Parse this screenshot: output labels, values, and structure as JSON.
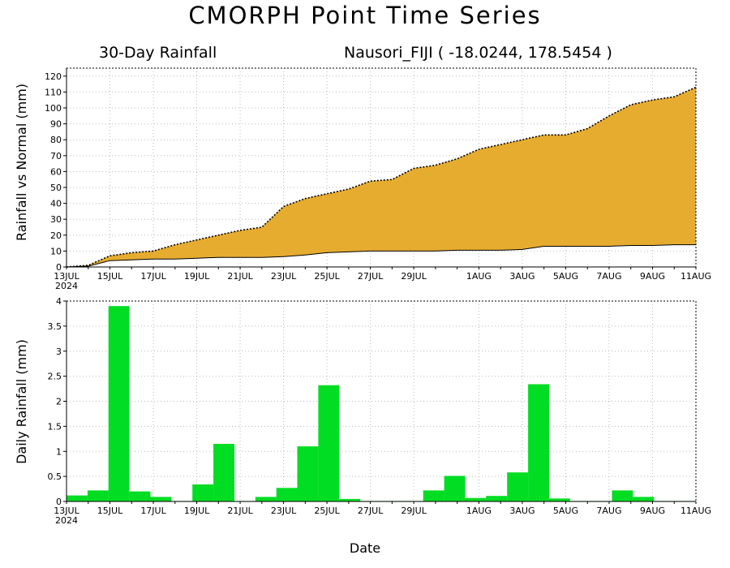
{
  "title": "CMORPH Point Time Series",
  "subtitle_left": "30-Day Rainfall",
  "subtitle_right": "Nausori_FIJI ( -18.0244, 178.5454 )",
  "xlabel": "Date",
  "colors": {
    "accumulated_fill": "#e6ac30",
    "daily_bar": "#00dd22",
    "frame": "#000000",
    "grid": "#bbbbbb"
  },
  "chart_data": [
    {
      "type": "area",
      "ylabel": "Rainfall vs Normal (mm)",
      "xlim": [
        0,
        29
      ],
      "ylim": [
        0,
        125
      ],
      "yticks": [
        0,
        10,
        20,
        30,
        40,
        50,
        60,
        70,
        80,
        90,
        100,
        110,
        120
      ],
      "xtick_positions": [
        0,
        2,
        4,
        6,
        8,
        10,
        12,
        14,
        16,
        19,
        21,
        23,
        25,
        27,
        29
      ],
      "xtick_labels": [
        "13JUL",
        "15JUL",
        "17JUL",
        "19JUL",
        "21JUL",
        "23JUL",
        "25JUL",
        "27JUL",
        "29JUL",
        "1AUG",
        "3AUG",
        "5AUG",
        "7AUG",
        "9AUG",
        "11AUG"
      ],
      "year_label": "2024",
      "grid": true,
      "x": [
        "13JUL",
        "14JUL",
        "15JUL",
        "16JUL",
        "17JUL",
        "18JUL",
        "19JUL",
        "20JUL",
        "21JUL",
        "22JUL",
        "23JUL",
        "24JUL",
        "25JUL",
        "26JUL",
        "27JUL",
        "28JUL",
        "29JUL",
        "30JUL",
        "31JUL",
        "1AUG",
        "2AUG",
        "3AUG",
        "4AUG",
        "5AUG",
        "6AUG",
        "7AUG",
        "8AUG",
        "9AUG",
        "10AUG",
        "11AUG"
      ],
      "series": [
        {
          "values": [
            0,
            1,
            7,
            9,
            10,
            14,
            17,
            20,
            23,
            25,
            38,
            43,
            46,
            49,
            54,
            55,
            62,
            64,
            68,
            74,
            77,
            80,
            83,
            83,
            87,
            95,
            102,
            105,
            107,
            113
          ],
          "style": "dotted"
        },
        {
          "values": [
            0,
            0.5,
            4,
            4.5,
            5,
            5,
            5.5,
            6,
            6,
            6,
            6.5,
            7.5,
            9,
            9.5,
            10,
            10,
            10,
            10,
            10.5,
            10.5,
            10.5,
            11,
            13,
            13,
            13,
            13,
            13.5,
            13.5,
            14,
            14
          ],
          "style": "solid"
        }
      ]
    },
    {
      "type": "bar",
      "ylabel": "Daily Rainfall (mm)",
      "xlim": [
        0,
        29
      ],
      "ylim": [
        0,
        4
      ],
      "yticks": [
        0,
        0.5,
        1,
        1.5,
        2,
        2.5,
        3,
        3.5,
        4
      ],
      "ytick_labels": [
        "0",
        "0.5",
        "1",
        "1.5",
        "2",
        "2.5",
        "3",
        "3.5",
        "4"
      ],
      "xtick_positions": [
        0,
        2,
        4,
        6,
        8,
        10,
        12,
        14,
        16,
        19,
        21,
        23,
        25,
        27,
        29
      ],
      "xtick_labels": [
        "13JUL",
        "15JUL",
        "17JUL",
        "19JUL",
        "21JUL",
        "23JUL",
        "25JUL",
        "27JUL",
        "29JUL",
        "1AUG",
        "3AUG",
        "5AUG",
        "7AUG",
        "9AUG",
        "11AUG"
      ],
      "year_label": "2024",
      "grid": true,
      "categories": [
        "13JUL",
        "14JUL",
        "15JUL",
        "16JUL",
        "17JUL",
        "18JUL",
        "19JUL",
        "20JUL",
        "21JUL",
        "22JUL",
        "23JUL",
        "24JUL",
        "25JUL",
        "26JUL",
        "27JUL",
        "28JUL",
        "29JUL",
        "30JUL",
        "31JUL",
        "1AUG",
        "2AUG",
        "3AUG",
        "4AUG",
        "5AUG",
        "6AUG",
        "7AUG",
        "8AUG",
        "9AUG",
        "10AUG",
        "11AUG"
      ],
      "values": [
        0.12,
        0.22,
        3.9,
        0.2,
        0.09,
        0.01,
        0.34,
        1.15,
        0.01,
        0.09,
        0.27,
        1.1,
        2.32,
        0.05,
        0.01,
        0.01,
        0.01,
        0.22,
        0.51,
        0.07,
        0.11,
        0.58,
        2.34,
        0.06,
        0.01,
        0.01,
        0.22,
        0.09,
        0.01,
        0.01
      ]
    }
  ]
}
